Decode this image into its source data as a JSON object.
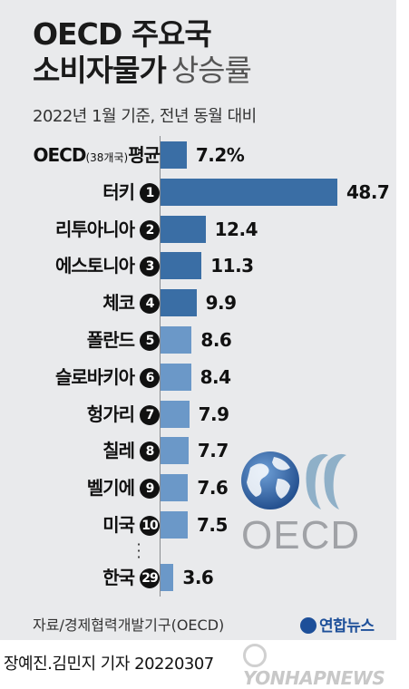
{
  "header": {
    "title_line1": "OECD 주요국",
    "title_line2_bold": "소비자물가",
    "title_line2_light": "상승률",
    "subtitle": "2022년 1월 기준, 전년 동월 대비"
  },
  "colors": {
    "highlight_bar": "#3a6ea5",
    "bar": "#6b98c8",
    "card_bg": "#e9eaec"
  },
  "chart_data": {
    "type": "bar",
    "orientation": "horizontal",
    "categories": [
      {
        "label": "OECD",
        "label_small": "(38개국)",
        "label_suffix": "평균",
        "rank": ""
      },
      {
        "label": "터키",
        "rank": "1"
      },
      {
        "label": "리투아니아",
        "rank": "2"
      },
      {
        "label": "에스토니아",
        "rank": "3"
      },
      {
        "label": "체코",
        "rank": "4"
      },
      {
        "label": "폴란드",
        "rank": "5"
      },
      {
        "label": "슬로바키아",
        "rank": "6"
      },
      {
        "label": "헝가리",
        "rank": "7"
      },
      {
        "label": "칠레",
        "rank": "8"
      },
      {
        "label": "벨기에",
        "rank": "9"
      },
      {
        "label": "미국",
        "rank": "10"
      },
      {
        "label": "한국",
        "rank": "29"
      }
    ],
    "values": [
      7.2,
      48.7,
      12.4,
      11.3,
      9.9,
      8.6,
      8.4,
      7.9,
      7.7,
      7.6,
      7.5,
      3.6
    ],
    "value_labels": [
      "7.2%",
      "48.7",
      "12.4",
      "11.3",
      "9.9",
      "8.6",
      "8.4",
      "7.9",
      "7.7",
      "7.6",
      "7.5",
      "3.6"
    ],
    "highlight_count": 5,
    "xlim": [
      0,
      48.7
    ],
    "grid": false
  },
  "logo": {
    "text": "OECD",
    "icon": "globe-icon"
  },
  "footer": {
    "source": "자료/경제협력개발기구(OECD)",
    "agency_ko": "연합뉴스",
    "credit": "장예진.김민지 기자  20220307",
    "agency_en": "YONHAPNEWS"
  }
}
